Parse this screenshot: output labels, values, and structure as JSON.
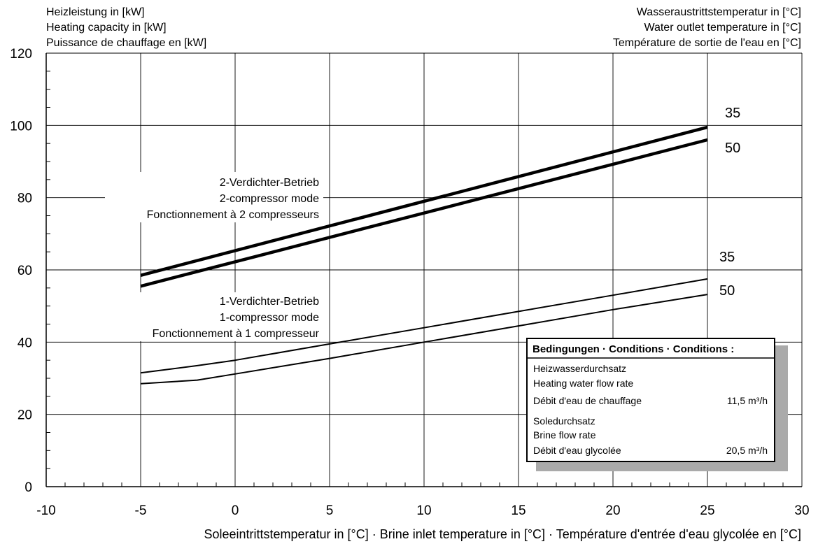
{
  "header_left": [
    "Heizleistung in [kW]",
    "Heating capacity in [kW]",
    "Puissance de chauffage en [kW]"
  ],
  "header_right": [
    "Wasseraustrittstemperatur in [°C]",
    "Water outlet temperature in [°C]",
    "Température de sortie de l'eau en [°C]"
  ],
  "annotation_2": [
    "2-Verdichter-Betrieb",
    "2-compressor mode",
    "Fonctionnement à 2 compresseurs"
  ],
  "annotation_1": [
    "1-Verdichter-Betrieb",
    "1-compressor mode",
    "Fonctionnement à 1 compresseur"
  ],
  "conditions": {
    "title": "Bedingungen · Conditions · Conditions :",
    "heating_lines": [
      "Heizwasserdurchsatz",
      "Heating water flow rate",
      "Débit d'eau de chauffage"
    ],
    "heating_value": "11,5 m³/h",
    "brine_lines": [
      "Soledurchsatz",
      "Brine flow rate",
      "Débit d'eau glycolée"
    ],
    "brine_value": "20,5 m³/h"
  },
  "chart_data": {
    "type": "line",
    "xlabel": "Soleeintrittstemperatur in [°C] · Brine inlet temperature in [°C] · Température d'entrée d'eau glycolée en [°C]",
    "ylabel": "Heizleistung in [kW]",
    "xlim": [
      -10,
      30
    ],
    "ylim": [
      0,
      120
    ],
    "xticks": [
      "-10",
      "-5",
      "0",
      "5",
      "10",
      "15",
      "20",
      "25",
      "30"
    ],
    "yticks": [
      "0",
      "20",
      "40",
      "60",
      "80",
      "100",
      "120"
    ],
    "grid": true,
    "series": [
      {
        "name": "35",
        "mode": "2-compressor",
        "x": [
          -5,
          25
        ],
        "y": [
          58.5,
          99.5
        ]
      },
      {
        "name": "50",
        "mode": "2-compressor",
        "x": [
          -5,
          25
        ],
        "y": [
          55.5,
          96
        ]
      },
      {
        "name": "35",
        "mode": "1-compressor",
        "x": [
          -5,
          -2,
          0,
          5,
          10,
          15,
          20,
          25
        ],
        "y": [
          31.5,
          33.5,
          35,
          39.5,
          44,
          48.5,
          53,
          57.5
        ]
      },
      {
        "name": "50",
        "mode": "1-compressor",
        "x": [
          -5,
          -2,
          0,
          5,
          10,
          15,
          20,
          25
        ],
        "y": [
          28.5,
          29.5,
          31.2,
          35.5,
          40,
          44.5,
          49,
          53.2
        ]
      }
    ]
  }
}
